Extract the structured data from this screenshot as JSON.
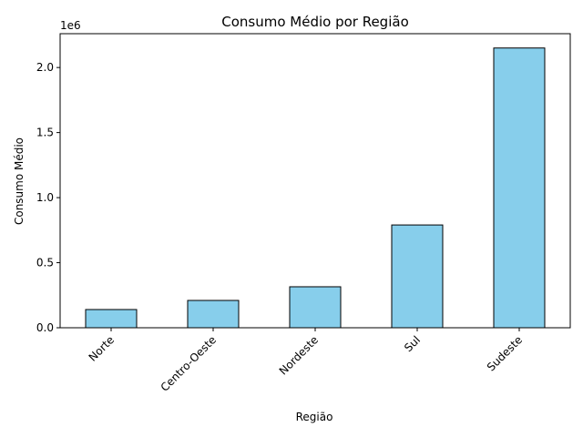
{
  "chart_data": {
    "type": "bar",
    "title": "Consumo Médio por Região",
    "xlabel": "Região",
    "ylabel": "Consumo Médio",
    "offset_text": "1e6",
    "categories": [
      "Norte",
      "Centro-Oeste",
      "Nordeste",
      "Sul",
      "Sudeste"
    ],
    "values": [
      140000,
      210000,
      315000,
      790000,
      2150000
    ],
    "ylim": [
      0,
      2260000
    ],
    "yticks": [
      0,
      500000,
      1000000,
      1500000,
      2000000
    ],
    "ytick_labels": [
      "0.0",
      "0.5",
      "1.0",
      "1.5",
      "2.0"
    ],
    "grid": false,
    "legend": "none",
    "bar_color": "#87ceeb",
    "edge_color": "#000000"
  }
}
